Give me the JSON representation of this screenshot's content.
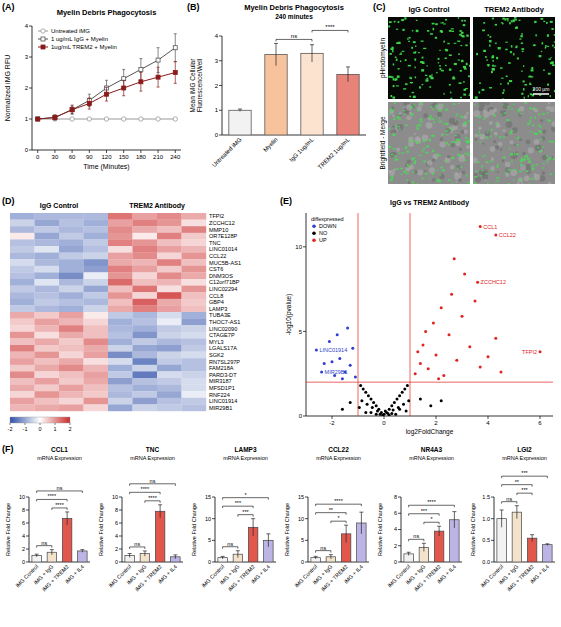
{
  "chart_data": [
    {
      "type": "line",
      "panel": "(A)",
      "title": "Myelin Debris Phagocytosis",
      "x_label": "Time (Minutes)",
      "y_label": "Normalized iMG RFU",
      "x": [
        0,
        30,
        60,
        90,
        120,
        150,
        180,
        210,
        240
      ],
      "xlim": [
        -10,
        250
      ],
      "xticks": [
        0,
        30,
        60,
        90,
        120,
        150,
        180,
        210,
        240
      ],
      "ylim": [
        0,
        4
      ],
      "yticks": [
        0,
        1,
        2,
        3,
        4
      ],
      "legend": "top-left",
      "series": [
        {
          "name": "Untreated iMG",
          "color": "#9a9a9a",
          "marker": "circle-open",
          "values": [
            1,
            1,
            1,
            1,
            1,
            1,
            1,
            1,
            1
          ],
          "errors": [
            0.02,
            0.02,
            0.02,
            0.02,
            0.02,
            0.02,
            0.02,
            0.02,
            0.02
          ]
        },
        {
          "name": "1 ug/mL IgG + Myelin",
          "color": "#555555",
          "marker": "square-open",
          "values": [
            1,
            1.05,
            1.3,
            1.6,
            2.0,
            2.3,
            2.6,
            2.9,
            3.3
          ],
          "errors": [
            0,
            0.08,
            0.15,
            0.2,
            0.25,
            0.3,
            0.35,
            0.4,
            0.45
          ]
        },
        {
          "name": "1ug/mL TREM2 + Myelin",
          "color": "#8b1a1a",
          "marker": "square",
          "values": [
            1,
            1.05,
            1.3,
            1.5,
            1.8,
            2.0,
            2.2,
            2.35,
            2.5
          ],
          "errors": [
            0,
            0.08,
            0.12,
            0.18,
            0.22,
            0.25,
            0.3,
            0.32,
            0.35
          ]
        }
      ]
    },
    {
      "type": "bar",
      "panel": "(B)",
      "title": "Myelin Debris Phagocytosis",
      "subtitle": "240 minutes",
      "y_label": "Mean iMG Cellular Fluorescence/Well",
      "categories": [
        "Untreated iMG",
        "Myelin",
        "IgG 1ug/mL",
        "TREM2 1ug/mL"
      ],
      "values": [
        1.0,
        3.25,
        3.3,
        2.45
      ],
      "errors": [
        0.05,
        0.45,
        0.35,
        0.3
      ],
      "colors": [
        "#f2f2f2",
        "#f6c39c",
        "#fbe3cf",
        "#e8837a"
      ],
      "ylim": [
        0,
        4
      ],
      "yticks": [
        0,
        1,
        2,
        3,
        4
      ],
      "brackets": [
        {
          "from": 1,
          "to": 2,
          "label": "ns"
        },
        {
          "from": 2,
          "to": 3,
          "label": "****"
        }
      ]
    },
    {
      "type": "image",
      "panel": "(C)",
      "columns": [
        "IgG Control",
        "TREM2 Antibody"
      ],
      "rows": [
        "pHrodomyelin",
        "Brightfield - Merge"
      ],
      "scale_bar": "200 µm"
    },
    {
      "type": "heatmap",
      "panel": "(D)",
      "column_groups": [
        {
          "label": "IgG Control",
          "count": 4
        },
        {
          "label": "TREM2 Antibody",
          "count": 4
        }
      ],
      "rows": [
        "TFPI2",
        "ZCCHC12",
        "MMP10",
        "OR7E128P",
        "TNC",
        "LINC01014",
        "CCL22",
        "MUC5B-AS1",
        "CST6",
        "DNM3OS",
        "C12orf71BP",
        "LINC02294",
        "CCL8",
        "GBP4",
        "LAMP3",
        "TUBA3E",
        "THOC7-AS1",
        "LINC02090",
        "CTAGE7P",
        "MYL3",
        "LGALS17A",
        "SGK2",
        "RN7SL297P",
        "FAM218A",
        "PARD3-DT",
        "MIR3187",
        "MFSD1P1",
        "RNF224",
        "LINC01914",
        "MIR29B1"
      ],
      "cells": [
        [
          -0.9,
          -0.8,
          -0.8,
          -0.8,
          1.3,
          0.9,
          1.1,
          0.8
        ],
        [
          -0.5,
          -1.0,
          -0.7,
          -0.9,
          0.9,
          1.2,
          1.0,
          0.3
        ],
        [
          -0.8,
          -0.6,
          -0.8,
          -0.7,
          1.1,
          0.8,
          0.6,
          1.2
        ],
        [
          0.2,
          -1.0,
          -0.6,
          -0.9,
          1.0,
          0.2,
          1.2,
          0.5
        ],
        [
          -0.7,
          -0.8,
          -0.9,
          -0.6,
          1.2,
          1.0,
          0.6,
          0.4
        ],
        [
          -0.6,
          -0.3,
          -1.0,
          -0.7,
          0.3,
          1.2,
          0.9,
          0.7
        ],
        [
          -0.8,
          -0.9,
          -0.6,
          -0.5,
          0.9,
          1.1,
          0.4,
          1.0
        ],
        [
          -0.4,
          -0.8,
          -0.9,
          -1.2,
          0.8,
          0.7,
          1.2,
          0.6
        ],
        [
          -0.6,
          -0.4,
          -0.9,
          -1.1,
          1.2,
          0.9,
          0.5,
          1.0
        ],
        [
          -0.7,
          -0.9,
          -1.3,
          -0.2,
          1.0,
          0.4,
          1.1,
          0.8
        ],
        [
          -0.9,
          -0.3,
          -0.8,
          -0.5,
          1.4,
          0.6,
          0.7,
          0.3
        ],
        [
          -0.6,
          -0.8,
          -0.5,
          -1.0,
          0.6,
          1.3,
          0.3,
          1.0
        ],
        [
          -0.8,
          -0.7,
          -0.9,
          -0.6,
          1.0,
          0.4,
          1.6,
          0.6
        ],
        [
          -0.9,
          -0.6,
          -0.7,
          -0.8,
          0.6,
          1.5,
          0.8,
          0.5
        ],
        [
          -0.6,
          -0.8,
          -0.9,
          -0.5,
          0.8,
          1.2,
          0.9,
          0.6
        ],
        [
          0.8,
          0.5,
          0.9,
          0.2,
          -0.6,
          -0.8,
          -0.4,
          -0.9
        ],
        [
          0.5,
          0.9,
          0.7,
          0.4,
          -0.9,
          -0.7,
          -0.2,
          -1.1
        ],
        [
          0.4,
          0.7,
          1.2,
          0.6,
          -0.8,
          -0.9,
          -0.6,
          -0.5
        ],
        [
          1.0,
          0.3,
          0.8,
          0.6,
          -0.7,
          -1.2,
          -0.5,
          -0.4
        ],
        [
          0.6,
          0.8,
          0.5,
          1.1,
          -0.9,
          -0.6,
          -0.8,
          -0.7
        ],
        [
          1.2,
          0.5,
          0.6,
          0.8,
          -0.5,
          -1.0,
          -1.1,
          -0.6
        ],
        [
          0.7,
          1.0,
          0.4,
          0.9,
          -1.3,
          -0.8,
          -0.5,
          -0.4
        ],
        [
          0.9,
          0.6,
          0.8,
          0.3,
          -0.4,
          -1.4,
          -0.6,
          -0.7
        ],
        [
          0.5,
          0.8,
          1.1,
          0.7,
          -0.9,
          -0.5,
          -1.0,
          -0.7
        ],
        [
          1.1,
          0.4,
          0.6,
          0.9,
          -0.6,
          -1.5,
          -0.4,
          -0.5
        ],
        [
          0.6,
          0.9,
          0.5,
          0.8,
          -1.1,
          -0.7,
          -0.6,
          -0.4
        ],
        [
          0.8,
          0.5,
          0.9,
          0.6,
          -0.7,
          -0.9,
          -0.8,
          -0.4
        ],
        [
          0.4,
          1.0,
          0.7,
          0.5,
          -0.8,
          -0.6,
          -1.0,
          -0.2
        ],
        [
          0.9,
          0.6,
          0.4,
          1.0,
          -0.5,
          -1.1,
          -0.7,
          -0.6
        ],
        [
          0.7,
          0.8,
          0.9,
          0.4,
          -1.0,
          -0.5,
          -0.6,
          -0.7
        ]
      ],
      "color_range": [
        -2,
        2
      ],
      "color_ticks": [
        -2,
        -1,
        0,
        1,
        2
      ],
      "colors": [
        "#2f4fa8",
        "#ffffff",
        "#cc2b2b"
      ]
    },
    {
      "type": "scatter",
      "panel": "(E)",
      "title": "IgG vs TREM2 Antibody",
      "x_label": "log2FoldChange",
      "y_label": "-log10(pvalue)",
      "xlim": [
        -3,
        6.5
      ],
      "xticks": [
        -2,
        0,
        2,
        4,
        6
      ],
      "ylim": [
        0,
        12
      ],
      "yticks": [
        0,
        5,
        10
      ],
      "legend": "top-left",
      "legend_title": "diffexpressed",
      "reference_lines": {
        "x": [
          -1,
          1
        ],
        "y": [
          2
        ]
      },
      "series": [
        {
          "name": "DOWN",
          "color": "#2f3fd0",
          "x": [
            -1.1,
            -1.3,
            -1.5,
            -1.2,
            -1.7,
            -1.9,
            -2.1,
            -2.3,
            -2.6,
            -2.4,
            -1.4,
            -1.6,
            -2.0,
            -1.8
          ],
          "values": [
            2.3,
            3.0,
            2.6,
            4.0,
            3.4,
            2.4,
            4.4,
            3.1,
            3.9,
            2.6,
            5.2,
            2.2,
            3.2,
            4.8
          ]
        },
        {
          "name": "NO",
          "color": "#000000",
          "x": [
            -0.9,
            -0.8,
            -0.7,
            -0.6,
            -0.5,
            -0.4,
            -0.3,
            -0.2,
            -0.1,
            0,
            0.1,
            0.2,
            0.3,
            0.4,
            0.5,
            0.6,
            0.7,
            0.8,
            0.9,
            -0.85,
            -0.65,
            -0.45,
            -0.25,
            -0.05,
            0.15,
            0.35,
            0.55,
            0.75,
            0.95,
            -0.7,
            -0.3,
            0.05,
            0.3,
            0.6,
            -0.95,
            0.85,
            -0.5,
            0.45,
            0.2,
            -0.15,
            -1.3,
            1.4,
            1.8,
            -1.6,
            2.2
          ],
          "values": [
            1.8,
            1.6,
            1.4,
            1.2,
            1.0,
            0.8,
            0.6,
            0.4,
            0.2,
            0.1,
            0.2,
            0.4,
            0.6,
            0.8,
            1.0,
            1.2,
            1.4,
            1.6,
            1.8,
            0.9,
            0.7,
            0.5,
            0.3,
            0.05,
            0.15,
            0.35,
            0.5,
            0.7,
            0.9,
            0.2,
            0.1,
            0.3,
            0.15,
            0.4,
            0.5,
            0.3,
            0.2,
            0.1,
            0.05,
            0.1,
            0.8,
            1.0,
            0.6,
            0.4,
            0.9
          ]
        },
        {
          "name": "UP",
          "color": "#e0241f",
          "x": [
            1.2,
            1.4,
            1.5,
            1.7,
            1.9,
            2.0,
            2.2,
            2.3,
            2.5,
            2.6,
            2.8,
            3.0,
            3.1,
            3.3,
            3.5,
            3.7,
            3.7,
            4.3,
            3.6,
            4.0,
            4.5,
            4.3,
            6.0,
            1.3,
            1.6,
            2.1,
            2.7
          ],
          "values": [
            2.5,
            3.1,
            4.2,
            2.8,
            5.5,
            3.6,
            6.4,
            2.4,
            4.8,
            7.2,
            3.3,
            5.9,
            8.4,
            4.1,
            6.8,
            2.9,
            11.2,
            10.7,
            7.9,
            3.5,
            2.6,
            4.6,
            3.8,
            3.8,
            5.0,
            2.2,
            9.3
          ]
        }
      ],
      "point_labels": [
        {
          "text": "CCL1",
          "series": 2,
          "index": 16
        },
        {
          "text": "CCL22",
          "series": 2,
          "index": 17
        },
        {
          "text": "ZCCHC12",
          "series": 2,
          "index": 18
        },
        {
          "text": "TFPI2",
          "series": 2,
          "index": 22
        },
        {
          "text": "LINC01914",
          "series": 0,
          "index": 8
        },
        {
          "text": "MIR29B1",
          "series": 0,
          "index": 9
        }
      ]
    },
    {
      "type": "bar",
      "panel": "(F)",
      "categories": [
        "iMG Control",
        "iMG + IgG",
        "iMG + TREM2",
        "iMG + IL4"
      ],
      "colors": [
        "#f2f2f2",
        "#f3e2cc",
        "#e2574c",
        "#bdb4e6"
      ],
      "y_label": "Relative Fold Change",
      "charts": [
        {
          "title": "CCL1",
          "subtitle": "mRNA Expression",
          "values": [
            1,
            1.5,
            6.7,
            1.7
          ],
          "errors": [
            0.2,
            0.4,
            1.0,
            0.2
          ],
          "ylim": [
            0,
            10
          ],
          "yticks": [
            0,
            2,
            4,
            6,
            8,
            10
          ],
          "brackets": [
            {
              "from": 0,
              "to": 1,
              "label": "ns"
            },
            {
              "from": 1,
              "to": 2,
              "label": "****"
            },
            {
              "from": 0,
              "to": 2,
              "label": "****"
            },
            {
              "from": 0,
              "to": 3,
              "label": "ns"
            }
          ]
        },
        {
          "title": "TNC",
          "subtitle": "mRNA Expression",
          "values": [
            1,
            1.3,
            7.8,
            0.8
          ],
          "errors": [
            0.3,
            0.4,
            1.0,
            0.3
          ],
          "ylim": [
            0,
            10
          ],
          "yticks": [
            0,
            2,
            4,
            6,
            8,
            10
          ],
          "brackets": [
            {
              "from": 0,
              "to": 1,
              "label": "ns"
            },
            {
              "from": 1,
              "to": 2,
              "label": "****"
            },
            {
              "from": 0,
              "to": 2,
              "label": "****"
            },
            {
              "from": 0,
              "to": 3,
              "label": "ns"
            }
          ]
        },
        {
          "title": "LAMP3",
          "subtitle": "mRNA Expression",
          "values": [
            1,
            1.8,
            8,
            5
          ],
          "errors": [
            0.3,
            0.8,
            2.0,
            1.5
          ],
          "ylim": [
            0,
            15
          ],
          "yticks": [
            0,
            5,
            10,
            15
          ],
          "brackets": [
            {
              "from": 0,
              "to": 1,
              "label": "ns"
            },
            {
              "from": 1,
              "to": 2,
              "label": "***"
            },
            {
              "from": 0,
              "to": 2,
              "label": "***"
            },
            {
              "from": 0,
              "to": 3,
              "label": "*"
            }
          ]
        },
        {
          "title": "CCL22",
          "subtitle": "mRNA Expression",
          "values": [
            1,
            1.2,
            6.5,
            9
          ],
          "errors": [
            0.3,
            0.5,
            2.0,
            2.5
          ],
          "ylim": [
            0,
            15
          ],
          "yticks": [
            0,
            5,
            10,
            15
          ],
          "brackets": [
            {
              "from": 0,
              "to": 1,
              "label": "ns"
            },
            {
              "from": 1,
              "to": 2,
              "label": "*"
            },
            {
              "from": 0,
              "to": 2,
              "label": "**"
            },
            {
              "from": 0,
              "to": 3,
              "label": "****"
            }
          ]
        },
        {
          "title": "NR4A3",
          "subtitle": "mRNA Expression",
          "values": [
            1,
            1.8,
            3.8,
            5.2
          ],
          "errors": [
            0.2,
            0.5,
            0.6,
            1.0
          ],
          "ylim": [
            0,
            8
          ],
          "yticks": [
            0,
            2,
            4,
            6,
            8
          ],
          "brackets": [
            {
              "from": 0,
              "to": 1,
              "label": "ns"
            },
            {
              "from": 1,
              "to": 2,
              "label": "*"
            },
            {
              "from": 0,
              "to": 2,
              "label": "***"
            },
            {
              "from": 0,
              "to": 3,
              "label": "****"
            }
          ]
        },
        {
          "title": "LGI2",
          "subtitle": "mRNA Expression",
          "values": [
            1,
            1.15,
            0.55,
            0.4
          ],
          "errors": [
            0.2,
            0.15,
            0.08,
            0.02
          ],
          "ylim": [
            0,
            1.5
          ],
          "yticks": [
            {
              "value": 0,
              "label": "0.0"
            },
            {
              "value": 0.5,
              "label": "0.5"
            },
            {
              "value": 1,
              "label": "1.0"
            },
            {
              "value": 1.5,
              "label": "1.5"
            }
          ],
          "brackets": [
            {
              "from": 0,
              "to": 1,
              "label": "ns"
            },
            {
              "from": 1,
              "to": 2,
              "label": "***"
            },
            {
              "from": 0,
              "to": 2,
              "label": "**"
            },
            {
              "from": 0,
              "to": 3,
              "label": "***"
            }
          ]
        }
      ]
    }
  ]
}
